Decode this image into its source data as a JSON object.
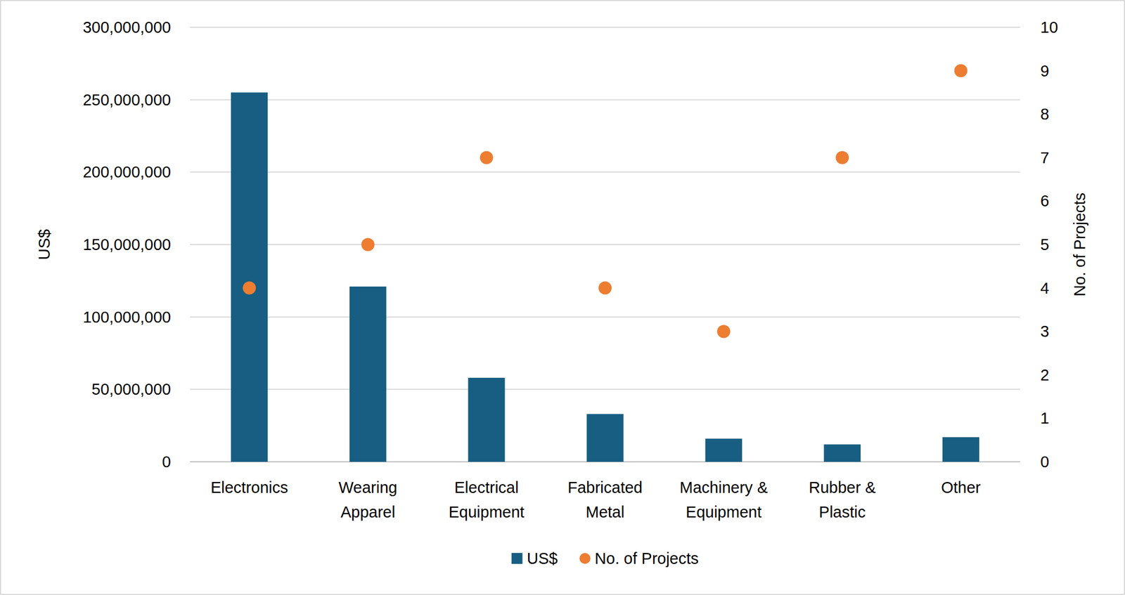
{
  "chart_data": {
    "type": "bar",
    "categories": [
      "Electronics",
      "Wearing Apparel",
      "Electrical Equipment",
      "Fabricated Metal",
      "Machinery & Equipment",
      "Rubber & Plastic",
      "Other"
    ],
    "series": [
      {
        "name": "US$",
        "type": "bar",
        "color": "#175e82",
        "values": [
          255000000,
          121000000,
          58000000,
          33000000,
          16000000,
          12000000,
          17000000
        ]
      },
      {
        "name": "No. of Projects",
        "type": "scatter",
        "marker": "circle",
        "axis": "y2",
        "color": "#ed7d31",
        "values": [
          4,
          5,
          7,
          4,
          3,
          7,
          9
        ]
      }
    ],
    "y_label": "US$",
    "y2_label": "No. of Projects",
    "ylim": [
      0,
      300000000
    ],
    "yticks": [
      0,
      {
        "value": 50000000,
        "label": "50,000,000"
      },
      {
        "value": 100000000,
        "label": "100,000,000"
      },
      {
        "value": 150000000,
        "label": "150,000,000"
      },
      {
        "value": 200000000,
        "label": "200,000,000"
      },
      {
        "value": 250000000,
        "label": "250,000,000"
      },
      {
        "value": 300000000,
        "label": "300,000,000"
      }
    ],
    "y2lim": [
      0,
      10
    ],
    "y2ticks": [
      0,
      1,
      2,
      3,
      4,
      5,
      6,
      7,
      8,
      9,
      10
    ],
    "grid": true,
    "legend": "bottom"
  }
}
